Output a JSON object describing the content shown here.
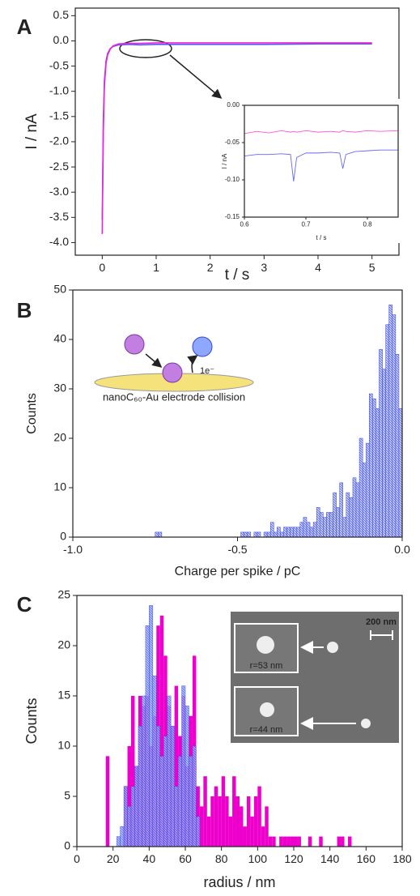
{
  "chart_data": [
    {
      "type": "line",
      "panel_label": "A",
      "x_label": "t / s",
      "y_label": "I / nA",
      "x": [
        0,
        0.01,
        0.02,
        0.04,
        0.07,
        0.1,
        0.15,
        0.2,
        0.3,
        0.5,
        0.7,
        1,
        2,
        3,
        4,
        5
      ],
      "series": [
        {
          "color": "#5a5cf0",
          "values": [
            -3.55,
            -2.6,
            -1.6,
            -0.8,
            -0.4,
            -0.25,
            -0.15,
            -0.11,
            -0.08,
            -0.07,
            -0.08,
            -0.07,
            -0.07,
            -0.07,
            -0.06,
            -0.06
          ]
        },
        {
          "color": "#ee22dd",
          "values": [
            -3.83,
            -2.8,
            -1.8,
            -0.9,
            -0.45,
            -0.28,
            -0.16,
            -0.1,
            -0.06,
            -0.05,
            -0.05,
            -0.04,
            -0.04,
            -0.04,
            -0.04,
            -0.04
          ]
        }
      ],
      "xlim": [
        -0.5,
        5.5
      ],
      "xticks": [
        0,
        1,
        2,
        3,
        4,
        5
      ],
      "ylim": [
        -4.25,
        0.65
      ],
      "yticks": [
        0.5,
        {
          "value": 0,
          "label": "0.0"
        },
        -0.5,
        {
          "value": -1,
          "label": "-1.0"
        },
        -1.5,
        {
          "value": -2,
          "label": "-2.0"
        },
        -2.5,
        {
          "value": -3,
          "label": "-3.0"
        },
        -3.5,
        {
          "value": -4,
          "label": "-4.0"
        }
      ]
    },
    {
      "type": "line",
      "x_label": "t / s",
      "y_label": "I / nA",
      "x": [
        0.6,
        0.62,
        0.64,
        0.66,
        0.675,
        0.68,
        0.685,
        0.7,
        0.72,
        0.74,
        0.755,
        0.76,
        0.765,
        0.78,
        0.8,
        0.82,
        0.85
      ],
      "series": [
        {
          "color": "#ff55dd",
          "values": [
            -0.038,
            -0.035,
            -0.037,
            -0.034,
            -0.036,
            -0.035,
            -0.036,
            -0.034,
            -0.036,
            -0.035,
            -0.036,
            -0.034,
            -0.035,
            -0.036,
            -0.034,
            -0.035,
            -0.034
          ]
        },
        {
          "color": "#6666ff",
          "values": [
            -0.068,
            -0.066,
            -0.066,
            -0.065,
            -0.066,
            -0.102,
            -0.07,
            -0.064,
            -0.064,
            -0.063,
            -0.064,
            -0.085,
            -0.066,
            -0.062,
            -0.061,
            -0.06,
            -0.06
          ]
        }
      ],
      "xlim": [
        0.6,
        0.85
      ],
      "xticks": [
        0.6,
        0.7,
        0.8
      ],
      "ylim": [
        -0.15,
        0
      ],
      "yticks": [
        {
          "value": 0,
          "label": "0.00"
        },
        -0.05,
        {
          "value": -0.1,
          "label": "-0.10"
        },
        -0.15
      ]
    },
    {
      "type": "histogram",
      "panel_label": "B",
      "x_label": "Charge per spike / pC",
      "y_label": "Counts",
      "annotations": [
        "nanoC₆₀-Au electrode collision",
        "1e⁻"
      ],
      "bins": [
        -0.75,
        -0.74,
        -0.73,
        -0.72,
        -0.71,
        -0.7,
        -0.69,
        -0.68,
        -0.67,
        -0.66,
        -0.65,
        -0.64,
        -0.63,
        -0.62,
        -0.61,
        -0.6,
        -0.59,
        -0.58,
        -0.57,
        -0.56,
        -0.55,
        -0.54,
        -0.53,
        -0.52,
        -0.51,
        -0.5,
        -0.49,
        -0.48,
        -0.47,
        -0.46,
        -0.45,
        -0.44,
        -0.43,
        -0.42,
        -0.41,
        -0.4,
        -0.39,
        -0.38,
        -0.37,
        -0.36,
        -0.35,
        -0.34,
        -0.33,
        -0.32,
        -0.31,
        -0.3,
        -0.29,
        -0.28,
        -0.27,
        -0.26,
        -0.25,
        -0.24,
        -0.23,
        -0.22,
        -0.21,
        -0.2,
        -0.19,
        -0.18,
        -0.17,
        -0.16,
        -0.15,
        -0.14,
        -0.13,
        -0.12,
        -0.11,
        -0.1,
        -0.09,
        -0.08,
        -0.07,
        -0.06,
        -0.05,
        -0.04,
        -0.03,
        -0.02,
        -0.01,
        0
      ],
      "series": [
        {
          "color": "#3344dd",
          "values": [
            1,
            1,
            0,
            0,
            0,
            0,
            0,
            0,
            0,
            0,
            0,
            0,
            0,
            0,
            0,
            0,
            0,
            0,
            0,
            0,
            0,
            0,
            0,
            0,
            0,
            0,
            1,
            1,
            1,
            0,
            1,
            1,
            0,
            1,
            1,
            3,
            1,
            2,
            1,
            2,
            2,
            2,
            2,
            2,
            3,
            4,
            3,
            2,
            3,
            6,
            5,
            4,
            5,
            5,
            9,
            6,
            11,
            4,
            9,
            8,
            12,
            11,
            20,
            15,
            19,
            29,
            28,
            26,
            38,
            34,
            43,
            47,
            45,
            37,
            26
          ]
        }
      ],
      "xlim": [
        -1,
        0
      ],
      "xticks": [
        {
          "value": -1,
          "label": "-1.0"
        },
        -0.5,
        {
          "value": 0,
          "label": "0.0"
        }
      ],
      "ylim": [
        0,
        50
      ],
      "yticks": [
        0,
        10,
        20,
        30,
        40,
        50
      ]
    },
    {
      "type": "histogram",
      "panel_label": "C",
      "x_label": "radius / nm",
      "y_label": "Counts",
      "annotations": [
        "200 nm",
        "r=53 nm",
        "r=44 nm"
      ],
      "bins": [
        16,
        18,
        20,
        22,
        24,
        26,
        28,
        30,
        32,
        34,
        36,
        38,
        40,
        42,
        44,
        46,
        48,
        50,
        52,
        54,
        56,
        58,
        60,
        62,
        64,
        66,
        68,
        70,
        72,
        74,
        76,
        78,
        80,
        82,
        84,
        86,
        88,
        90,
        92,
        94,
        96,
        98,
        100,
        102,
        104,
        106,
        108,
        110,
        112,
        114,
        116,
        118,
        120,
        122,
        124,
        126,
        128,
        130,
        132,
        134,
        136,
        138,
        140,
        142,
        144,
        146,
        148,
        150,
        152
      ],
      "series": [
        {
          "color": "#ee00cc",
          "values": [
            9,
            0,
            0,
            0,
            0,
            6,
            10,
            15,
            8,
            15,
            14,
            15,
            10,
            13,
            22,
            23,
            19,
            14,
            12,
            16,
            11,
            15,
            8,
            13,
            19,
            6,
            4,
            7,
            3,
            5,
            6,
            5,
            7,
            5,
            3,
            7,
            5,
            4,
            2,
            5,
            3,
            5,
            6,
            2,
            4,
            1,
            1,
            0,
            1,
            1,
            1,
            1,
            1,
            1,
            0,
            0,
            1,
            0,
            0,
            1,
            0,
            0,
            0,
            0,
            1,
            1,
            0,
            1
          ]
        },
        {
          "color": "#3344dd",
          "values": [
            0,
            0,
            0,
            1,
            2,
            6,
            4,
            6,
            8,
            12,
            15,
            22,
            24,
            17,
            12,
            9,
            11,
            15,
            12,
            6,
            9,
            16,
            14,
            9,
            10,
            3,
            0,
            0,
            0,
            0,
            0,
            0,
            0,
            0,
            0,
            0,
            0,
            0,
            0,
            0,
            0,
            0,
            0,
            0,
            0,
            0,
            0,
            0,
            0,
            0,
            0,
            0,
            0,
            0,
            0,
            0,
            0,
            0,
            0,
            0,
            0,
            0,
            0,
            0,
            0,
            0,
            0,
            0
          ]
        }
      ],
      "xlim": [
        0,
        180
      ],
      "xticks": [
        0,
        20,
        40,
        60,
        80,
        100,
        120,
        140,
        160,
        180
      ],
      "ylim": [
        0,
        25
      ],
      "yticks": [
        0,
        5,
        10,
        15,
        20,
        25
      ]
    }
  ]
}
